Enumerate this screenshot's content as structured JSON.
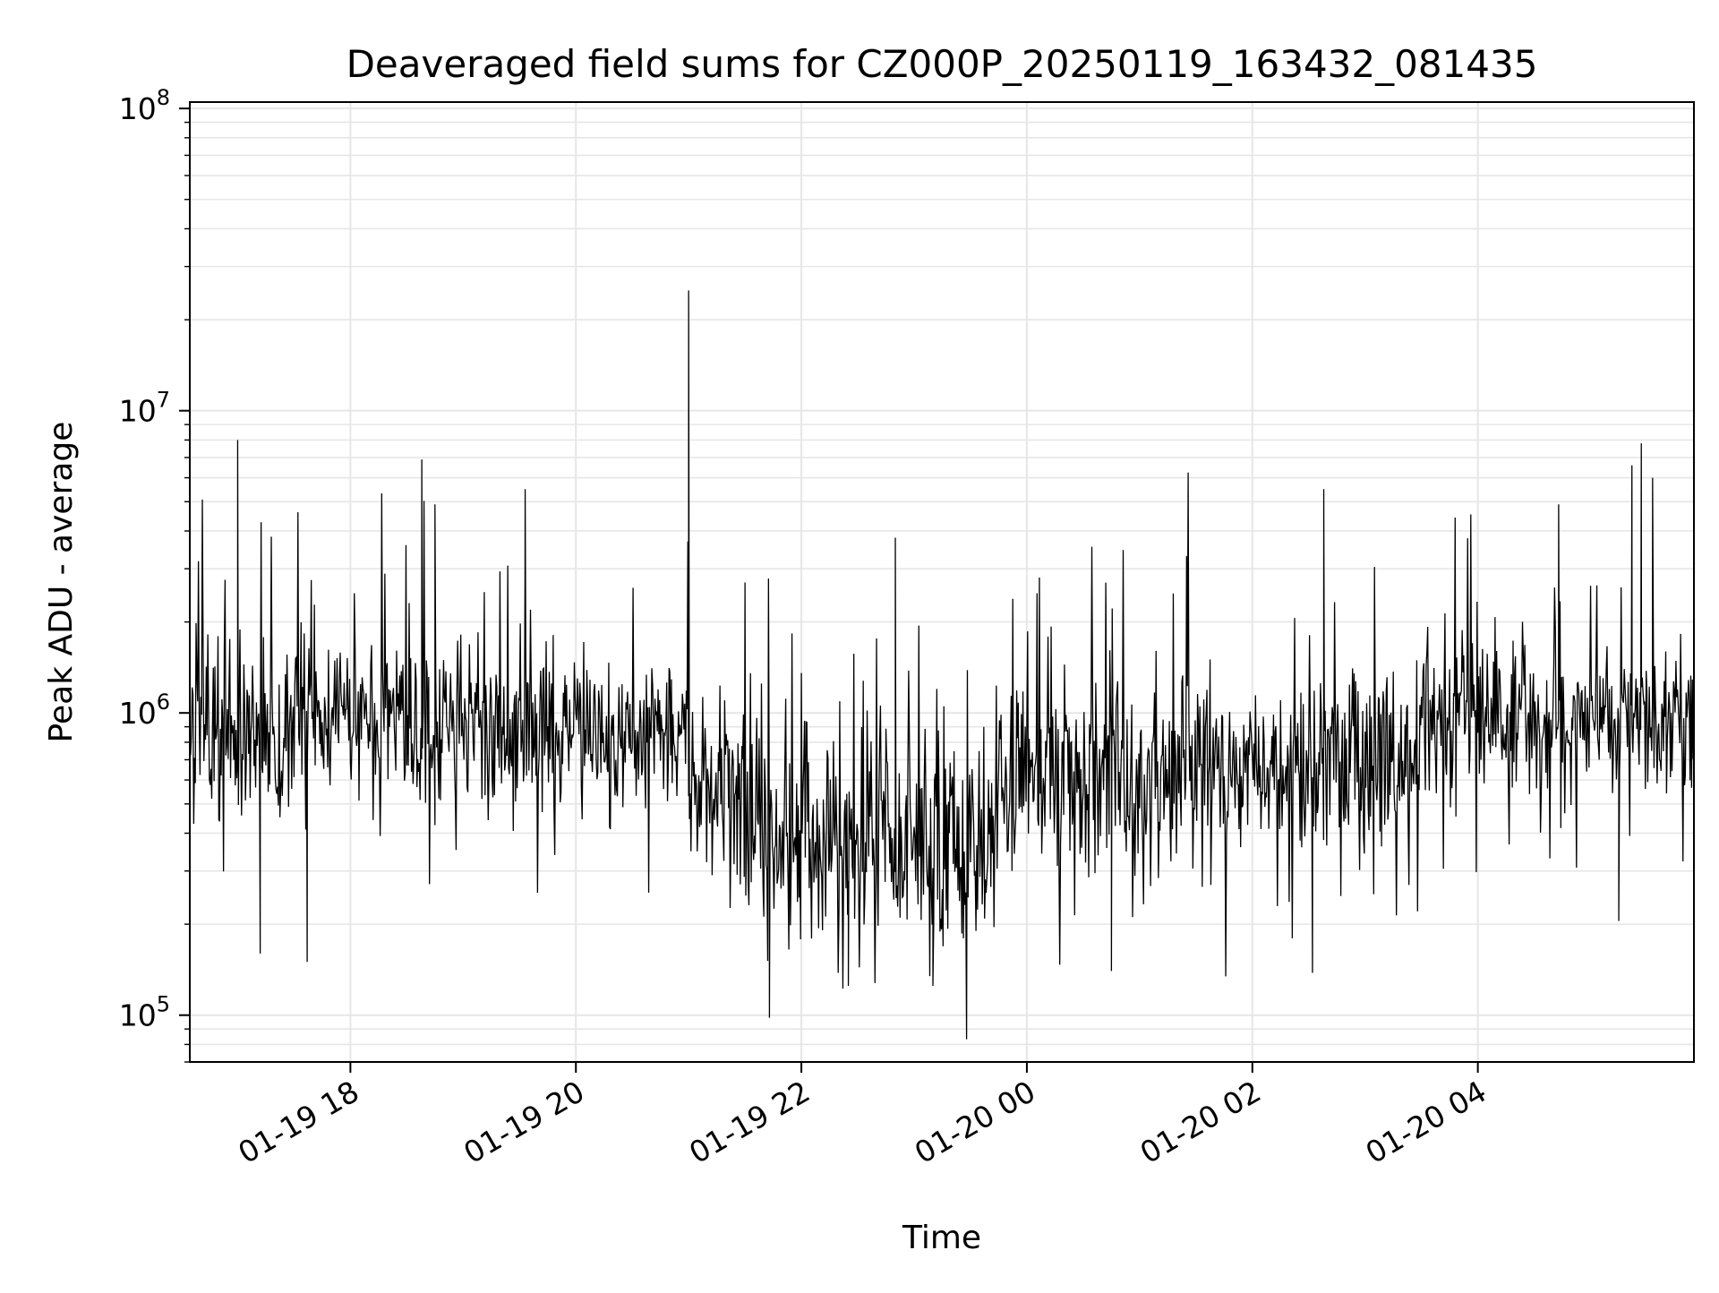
{
  "chart_data": {
    "type": "line",
    "title": "Deaveraged field sums for CZ000P_20250119_163432_081435",
    "xlabel": "Time",
    "ylabel": "Peak ADU - average",
    "x_axis": {
      "type": "time",
      "range": [
        "2025-01-19 16:34:32",
        "2025-01-20 05:55:00"
      ],
      "ticks": [
        {
          "value": "2025-01-19 18:00",
          "label": "01-19 18"
        },
        {
          "value": "2025-01-19 20:00",
          "label": "01-19 20"
        },
        {
          "value": "2025-01-19 22:00",
          "label": "01-19 22"
        },
        {
          "value": "2025-01-20 00:00",
          "label": "01-20 00"
        },
        {
          "value": "2025-01-20 02:00",
          "label": "01-20 02"
        },
        {
          "value": "2025-01-20 04:00",
          "label": "01-20 04"
        }
      ]
    },
    "y_axis": {
      "scale": "log",
      "range": [
        70000,
        105000000
      ],
      "ticks": [
        {
          "value": 100000,
          "base": "10",
          "exp": "5"
        },
        {
          "value": 1000000,
          "base": "10",
          "exp": "6"
        },
        {
          "value": 10000000,
          "base": "10",
          "exp": "7"
        },
        {
          "value": 100000000,
          "base": "10",
          "exp": "8"
        }
      ]
    },
    "grid": true,
    "line_color": "#000000",
    "grid_color": "#e6e6e6",
    "series": [
      {
        "segments": [
          {
            "start": "2025-01-19 16:34:32",
            "end": "2025-01-19 17:30",
            "median": 850000,
            "spread": 0.55
          },
          {
            "start": "2025-01-19 17:30",
            "end": "2025-01-19 19:00",
            "median": 950000,
            "spread": 0.5
          },
          {
            "start": "2025-01-19 19:00",
            "end": "2025-01-19 21:00",
            "median": 850000,
            "spread": 0.45
          },
          {
            "start": "2025-01-19 21:00",
            "end": "2025-01-19 21:30",
            "median": 550000,
            "spread": 0.6
          },
          {
            "start": "2025-01-19 21:30",
            "end": "2025-01-19 23:45",
            "median": 380000,
            "spread": 0.65
          },
          {
            "start": "2025-01-19 23:45",
            "end": "2025-01-20 01:30",
            "median": 600000,
            "spread": 0.55
          },
          {
            "start": "2025-01-20 01:30",
            "end": "2025-01-20 03:30",
            "median": 650000,
            "spread": 0.5
          },
          {
            "start": "2025-01-20 03:30",
            "end": "2025-01-20 05:55",
            "median": 950000,
            "spread": 0.45
          }
        ],
        "spikes": [
          {
            "x": "2025-01-19 17:00",
            "y": 8000000
          },
          {
            "x": "2025-01-19 18:38",
            "y": 6900000
          },
          {
            "x": "2025-01-19 18:45",
            "y": 4900000
          },
          {
            "x": "2025-01-19 19:33",
            "y": 5500000
          },
          {
            "x": "2025-01-19 21:00",
            "y": 25000000
          },
          {
            "x": "2025-01-19 22:50",
            "y": 3800000
          },
          {
            "x": "2025-01-20 00:42",
            "y": 2700000
          },
          {
            "x": "2025-01-20 02:38",
            "y": 5500000
          },
          {
            "x": "2025-01-20 04:43",
            "y": 4900000
          },
          {
            "x": "2025-01-20 05:22",
            "y": 6600000
          },
          {
            "x": "2025-01-20 05:27",
            "y": 7800000
          },
          {
            "x": "2025-01-20 05:33",
            "y": 6000000
          }
        ],
        "dips": [
          {
            "x": "2025-01-19 17:12",
            "y": 160000
          },
          {
            "x": "2025-01-19 17:37",
            "y": 150000
          },
          {
            "x": "2025-01-19 21:43",
            "y": 98000
          },
          {
            "x": "2025-01-19 22:25",
            "y": 125000
          },
          {
            "x": "2025-01-19 23:10",
            "y": 125000
          },
          {
            "x": "2025-01-20 00:45",
            "y": 140000
          },
          {
            "x": "2025-01-20 02:32",
            "y": 138000
          },
          {
            "x": "2025-01-20 05:15",
            "y": 205000
          }
        ]
      }
    ]
  }
}
